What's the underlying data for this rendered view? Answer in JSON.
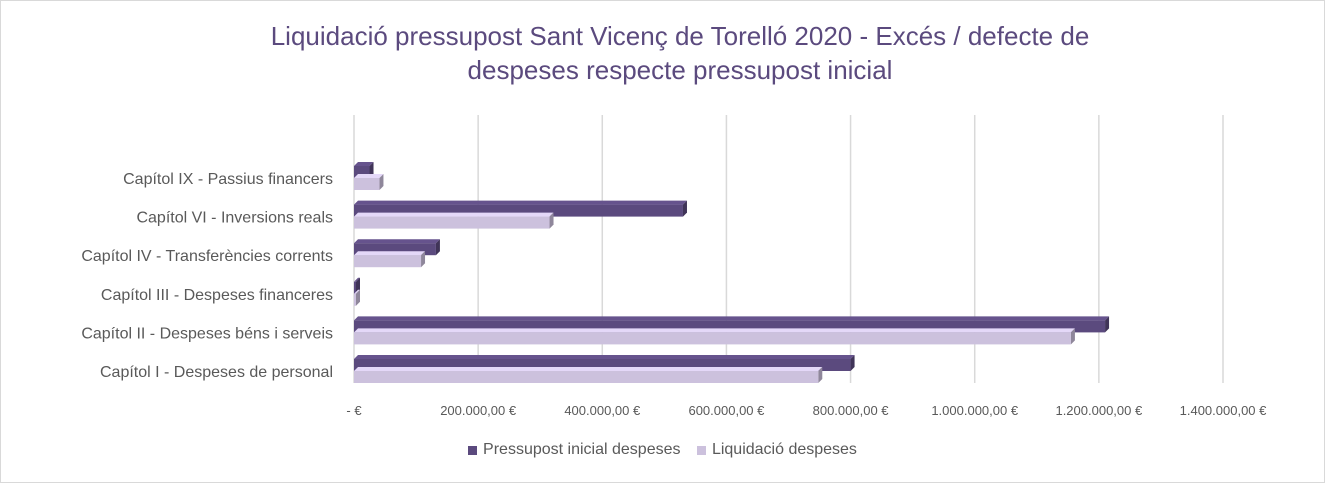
{
  "colors": {
    "series1": "#5b4a7e",
    "series2": "#ccc1dd",
    "grid": "#d9d9d9",
    "text": "#595959",
    "title": "#5b4a7e"
  },
  "chart_data": {
    "type": "bar",
    "orientation": "horizontal",
    "style": "3d-clustered",
    "title_line1": "Liquidació pressupost Sant Vicenç de Torelló 2020 - Excés / defecte de",
    "title_line2": "despeses respecte pressupost inicial",
    "categories": [
      "Capítol I - Despeses de personal",
      "Capítol II - Despeses béns i serveis",
      "Capítol III - Despeses financeres",
      "Capítol IV - Transferències corrents",
      "Capítol VI - Inversions reals",
      "Capítol IX - Passius financers"
    ],
    "series": [
      {
        "name": "Pressupost inicial despeses",
        "values": [
          800000,
          1210000,
          3000,
          132000,
          530000,
          25000
        ]
      },
      {
        "name": "Liquidació despeses",
        "values": [
          748000,
          1155000,
          1500,
          108000,
          315000,
          41000
        ]
      }
    ],
    "x_ticks": [
      0,
      200000,
      400000,
      600000,
      800000,
      1000000,
      1200000,
      1400000
    ],
    "x_tick_labels": [
      "-  €",
      "200.000,00 €",
      "400.000,00 €",
      "600.000,00 €",
      "800.000,00 €",
      "1.000.000,00 €",
      "1.200.000,00 €",
      "1.400.000,00 €"
    ],
    "xlim": [
      0,
      1400000
    ],
    "grid": true,
    "legend_position": "bottom"
  }
}
